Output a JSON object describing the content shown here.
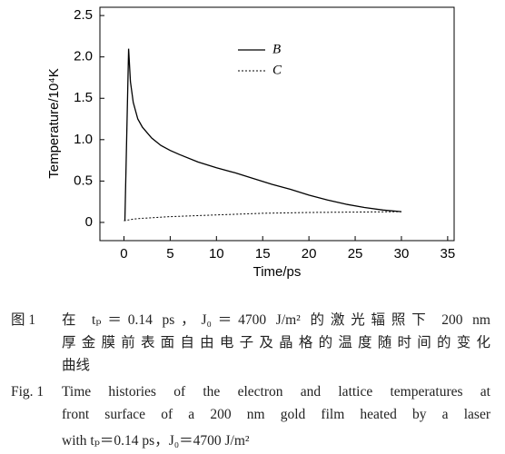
{
  "chart_data": {
    "type": "line",
    "xlabel": "Time/ps",
    "ylabel": "Temperature/10⁴K",
    "xlim": [
      -2.6,
      35.7
    ],
    "ylim": [
      -0.22,
      2.6
    ],
    "xticks": [
      0,
      5,
      10,
      15,
      20,
      25,
      30,
      35
    ],
    "yticks": [
      0,
      0.5,
      {
        "value": 1,
        "label": "1.0"
      },
      1.5,
      {
        "value": 2,
        "label": "2.0"
      },
      2.5
    ],
    "series": [
      {
        "name": "B",
        "color": "#000000",
        "dashed": false,
        "x": [
          0.1,
          0.5,
          0.7,
          1,
          1.5,
          2,
          3,
          4,
          5,
          6,
          8,
          10,
          12,
          14,
          16,
          18,
          20,
          22,
          24,
          26,
          28,
          30
        ],
        "values": [
          0.02,
          2.1,
          1.7,
          1.45,
          1.25,
          1.15,
          1.02,
          0.93,
          0.87,
          0.82,
          0.73,
          0.66,
          0.6,
          0.53,
          0.46,
          0.4,
          0.33,
          0.27,
          0.22,
          0.18,
          0.15,
          0.13
        ]
      },
      {
        "name": "C",
        "color": "#000000",
        "dashed": true,
        "x": [
          0,
          1,
          2,
          5,
          10,
          15,
          20,
          25,
          30
        ],
        "values": [
          0.02,
          0.04,
          0.05,
          0.07,
          0.09,
          0.11,
          0.12,
          0.125,
          0.13
        ]
      }
    ]
  },
  "caption": {
    "zh_label": "图 1",
    "zh_lines": [
      "在 tₚ＝0.14 ps，J₀＝4700 J/m² 的激光辐照下 200 nm",
      "厚金膜前表面自由电子及晶格的温度随时间的变化",
      "曲线"
    ],
    "en_label": "Fig. 1",
    "en_lines": [
      "Time histories of the electron and lattice temperatures at",
      "front surface of a 200 nm gold film heated by a laser",
      "with tₚ＝0.14 ps，J₀＝4700 J/m²"
    ]
  }
}
